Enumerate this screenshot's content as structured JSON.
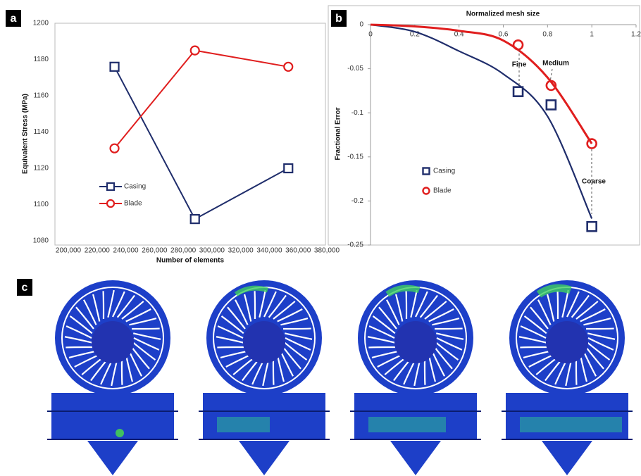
{
  "panel_labels": [
    "a",
    "b",
    "c"
  ],
  "chart_data": [
    {
      "type": "line",
      "x_label": "Number of elements",
      "y_label": "Equivalent Stress (MPa)",
      "x": [
        240000,
        296000,
        361000
      ],
      "series": [
        {
          "name": "Casing",
          "color": "#1f2d6b",
          "marker": "square",
          "values": [
            1176,
            1092,
            1120
          ]
        },
        {
          "name": "Blade",
          "color": "#e01e1e",
          "marker": "circle",
          "values": [
            1131,
            1185,
            1176
          ]
        }
      ],
      "xlim": [
        200000,
        380000
      ],
      "xticks": [
        {
          "value": 200000,
          "label": "200,000"
        },
        {
          "value": 220000,
          "label": "220,000"
        },
        {
          "value": 240000,
          "label": "240,000"
        },
        {
          "value": 260000,
          "label": "260,000"
        },
        {
          "value": 280000,
          "label": "280,000"
        },
        {
          "value": 300000,
          "label": "300,000"
        },
        {
          "value": 320000,
          "label": "320,000"
        },
        {
          "value": 340000,
          "label": "340,000"
        },
        {
          "value": 360000,
          "label": "360,000"
        },
        {
          "value": 380000,
          "label": "380,000"
        }
      ],
      "ylim": [
        1080,
        1200
      ],
      "yticks": [
        1080,
        1100,
        1120,
        1140,
        1160,
        1180,
        1200
      ]
    },
    {
      "type": "scatter",
      "title": "Normalized mesh size",
      "y_label": "Fractional Error",
      "series": [
        {
          "name": "Casing",
          "color": "#1f2d6b",
          "marker": "square",
          "x": [
            0.667,
            0.816,
            1
          ],
          "values": [
            -0.076,
            -0.091,
            -0.229
          ]
        },
        {
          "name": "Blade",
          "color": "#e01e1e",
          "marker": "circle",
          "x": [
            0.667,
            0.816,
            1
          ],
          "values": [
            -0.023,
            -0.069,
            -0.135
          ]
        },
        {
          "color": "#1f2d6b",
          "x": [
            0,
            0.2,
            0.4,
            0.6,
            0.8,
            1
          ],
          "values": [
            0,
            -0.008,
            -0.03,
            -0.056,
            -0.104,
            -0.22
          ]
        },
        {
          "color": "#e01e1e",
          "x": [
            0,
            0.2,
            0.4,
            0.6,
            0.8,
            1
          ],
          "values": [
            0,
            -0.002,
            -0.007,
            -0.018,
            -0.06,
            -0.135
          ]
        }
      ],
      "annotations": [
        "Fine",
        "Medium",
        "Coarse"
      ],
      "xlim": [
        0,
        1.2
      ],
      "xticks": [
        0,
        0.2,
        0.4,
        0.6,
        0.8,
        1,
        1.2
      ],
      "ylim": [
        -0.25,
        0
      ],
      "yticks": [
        0,
        -0.05,
        -0.1,
        -0.15,
        -0.2,
        -0.25
      ]
    }
  ]
}
